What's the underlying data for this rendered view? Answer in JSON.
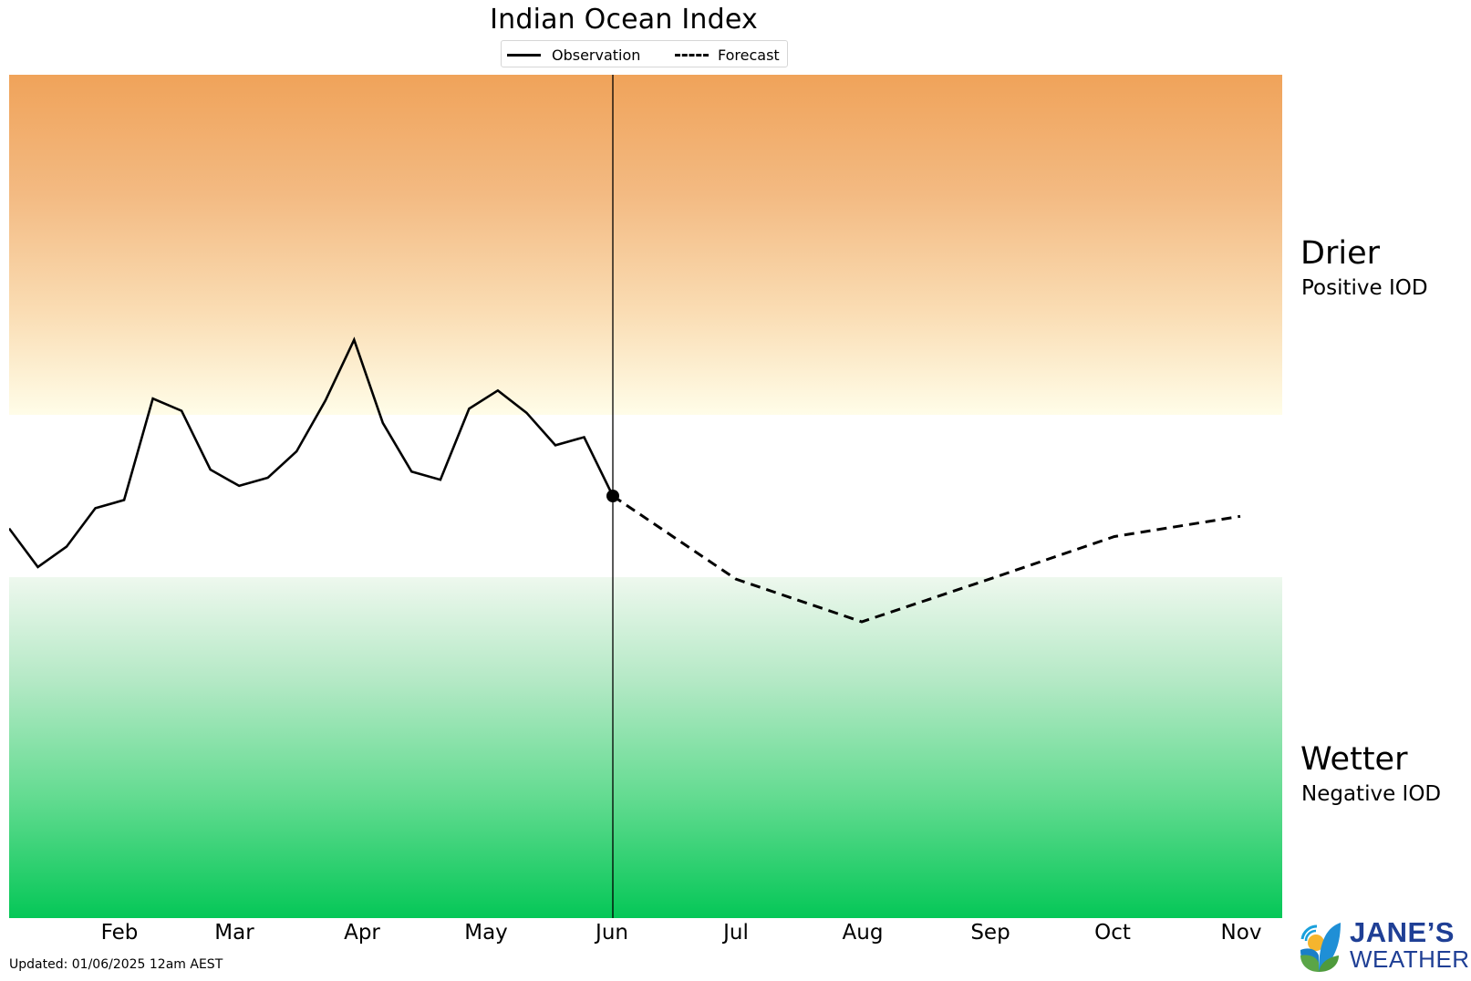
{
  "title": "Indian Ocean Index",
  "legend": {
    "observation_label": "Observation",
    "forecast_label": "Forecast"
  },
  "zones": {
    "positive": {
      "title": "Drier",
      "subtitle": "Positive IOD",
      "color_top": "#F0A35A",
      "color_bottom": "#FFFDE8"
    },
    "negative": {
      "title": "Wetter",
      "subtitle": "Negative IOD",
      "color_top": "#EEF8EE",
      "color_bottom": "#05C757"
    }
  },
  "updated": "Updated: 01/06/2025 12am AEST",
  "logo": {
    "line1": "JANE’S",
    "line2": "WEATHER"
  },
  "chart_data": {
    "type": "line",
    "title": "Indian Ocean Index",
    "xlabel": "",
    "ylabel": "",
    "x_tick_labels": [
      "Feb",
      "Mar",
      "Apr",
      "May",
      "Jun",
      "Jul",
      "Aug",
      "Sep",
      "Oct",
      "Nov"
    ],
    "legend_position": "top-center",
    "grid": false,
    "ylim": [
      -2.1,
      2.0
    ],
    "thresholds": {
      "positive_iod": 0.4,
      "negative_iod": -0.4
    },
    "current_marker": {
      "label": "Jun",
      "value": 0.0
    },
    "series": [
      {
        "name": "Observation",
        "style": "solid",
        "x": [
          "Jan 1",
          "Jan 8",
          "Jan 15",
          "Jan 22",
          "Jan 29",
          "Feb 5",
          "Feb 12",
          "Feb 19",
          "Feb 26",
          "Mar 5",
          "Mar 12",
          "Mar 19",
          "Mar 26",
          "Apr 2",
          "Apr 9",
          "Apr 16",
          "Apr 23",
          "Apr 30",
          "May 7",
          "May 14",
          "May 21",
          "May 28"
        ],
        "values": [
          -0.16,
          -0.35,
          -0.25,
          -0.06,
          -0.02,
          0.48,
          0.42,
          0.13,
          0.05,
          0.09,
          0.22,
          0.47,
          0.77,
          0.36,
          0.12,
          0.08,
          0.43,
          0.52,
          0.41,
          0.25,
          0.29,
          0.0
        ]
      },
      {
        "name": "Forecast",
        "style": "dashed",
        "x": [
          "Jun",
          "Jul",
          "Aug",
          "Sep",
          "Oct",
          "Nov"
        ],
        "values": [
          0.0,
          -0.41,
          -0.62,
          -0.41,
          -0.2,
          -0.1
        ]
      }
    ]
  }
}
